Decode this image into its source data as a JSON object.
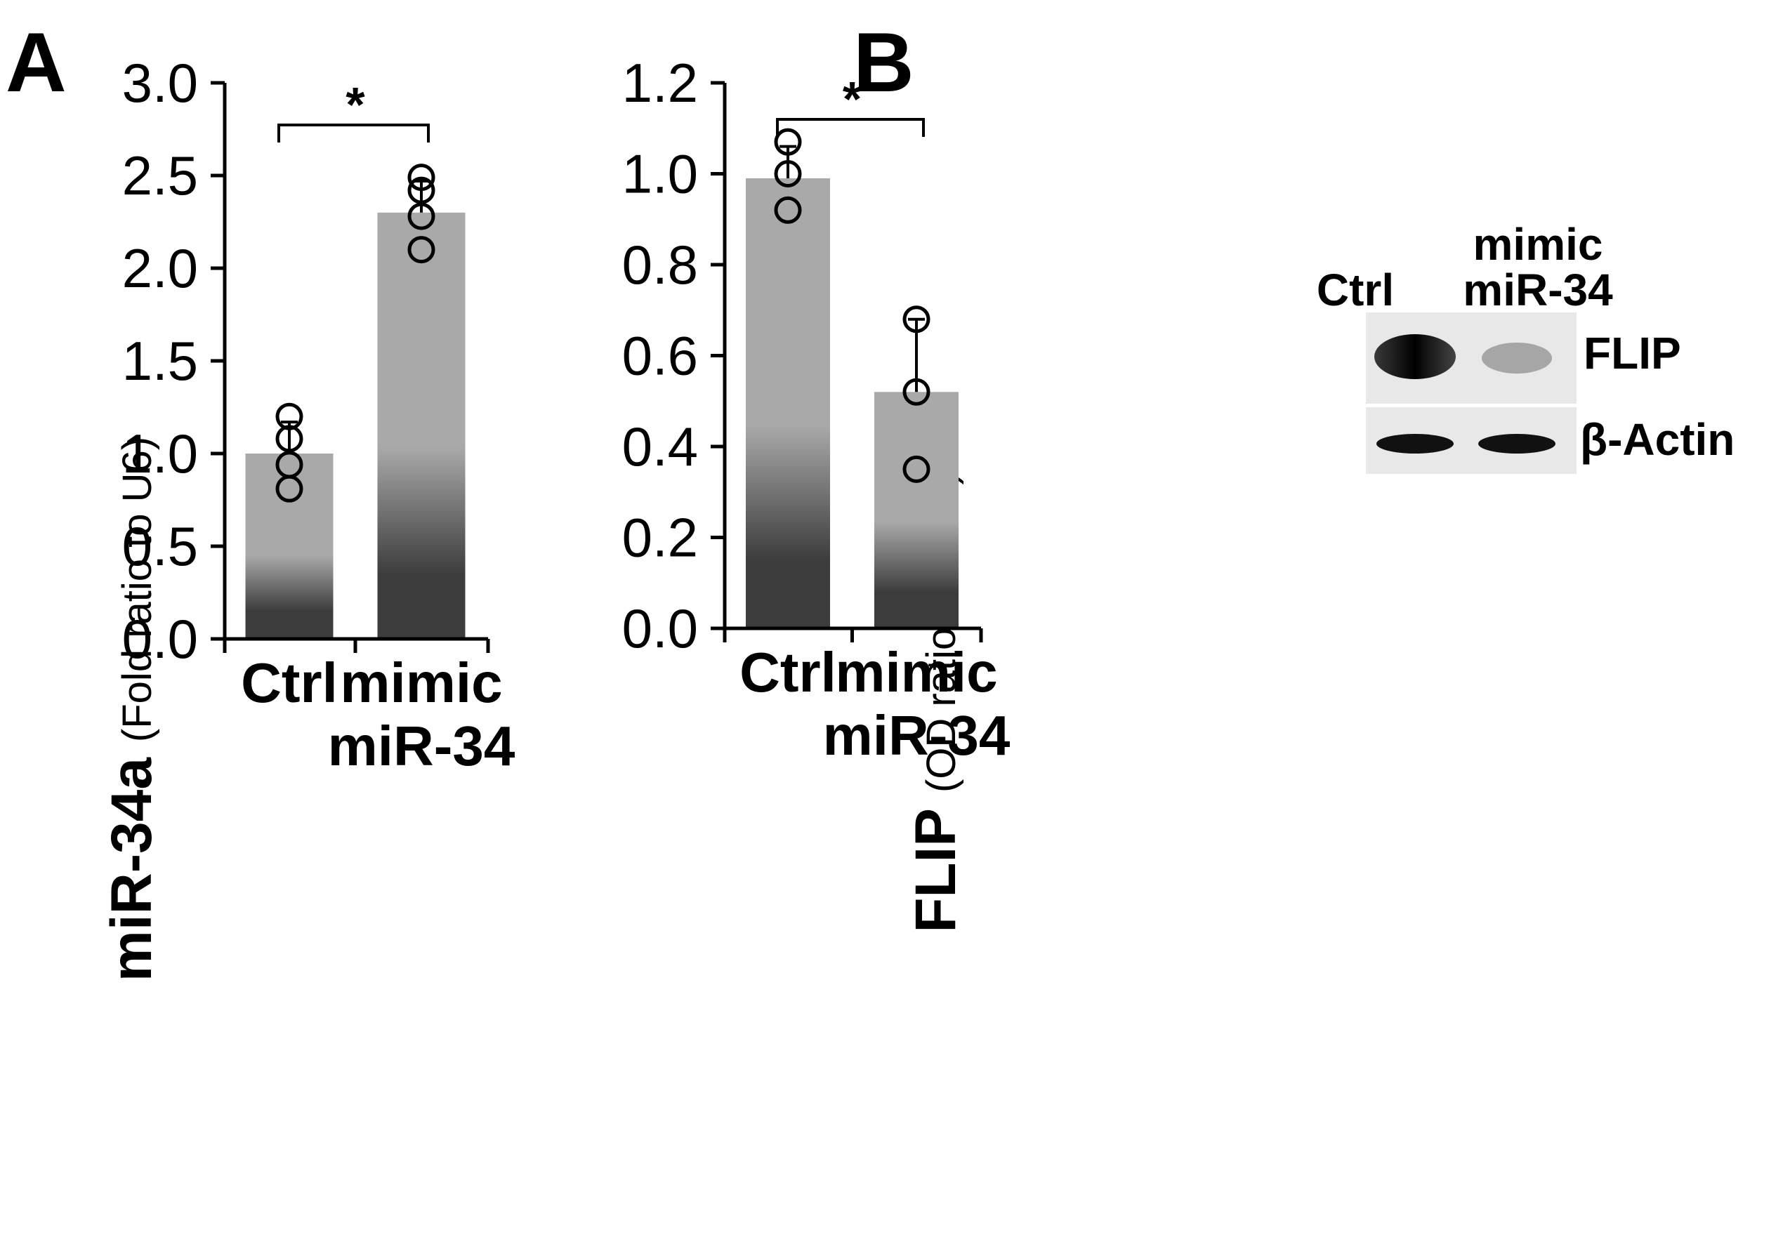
{
  "chart_data": [
    {
      "type": "bar",
      "panel": "A",
      "categories": [
        "Ctrl",
        "mimic miR-34"
      ],
      "category_lines": [
        [
          "Ctrl"
        ],
        [
          "mimic",
          "miR-34"
        ]
      ],
      "ylabel_main": "miR-34a",
      "ylabel_sub": "(Fold ratio to U6)",
      "ylim": [
        0,
        3.0
      ],
      "yticks": [
        "0.0",
        "0.5",
        "1.0",
        "1.5",
        "2.0",
        "2.5",
        "3.0"
      ],
      "ytick_values": [
        0,
        0.5,
        1.0,
        1.5,
        2.0,
        2.5,
        3.0
      ],
      "values": [
        1.0,
        2.3
      ],
      "error_upper": [
        1.17,
        2.47
      ],
      "points": [
        [
          1.2,
          1.08,
          0.94,
          0.81
        ],
        [
          2.49,
          2.42,
          2.28,
          2.1
        ]
      ],
      "significance": "*",
      "grid": false
    },
    {
      "type": "bar",
      "panel": "B",
      "categories": [
        "Ctrl",
        "mimic miR-34"
      ],
      "category_lines": [
        [
          "Ctrl"
        ],
        [
          "mimic",
          "miR-34"
        ]
      ],
      "ylabel_main": "FLIP",
      "ylabel_sub": "(OD ratio to actin)",
      "ylim": [
        0,
        1.2
      ],
      "yticks": [
        "0.0",
        "0.2",
        "0.4",
        "0.6",
        "0.8",
        "1.0",
        "1.2"
      ],
      "ytick_values": [
        0,
        0.2,
        0.4,
        0.6,
        0.8,
        1.0,
        1.2
      ],
      "values": [
        0.99,
        0.52
      ],
      "error_upper": [
        1.06,
        0.68
      ],
      "points": [
        [
          1.07,
          1.0,
          0.92
        ],
        [
          0.68,
          0.52,
          0.35
        ]
      ],
      "significance": "*",
      "grid": false,
      "inset_blot": {
        "lane_labels": [
          "Ctrl",
          "mimic\nmiR-34"
        ],
        "lane_label_lines": [
          [
            "Ctrl"
          ],
          [
            "mimic",
            "miR-34"
          ]
        ],
        "rows": [
          "FLIP",
          "β-Actin"
        ]
      }
    }
  ],
  "colors": {
    "bar_top": "#a8a8a8",
    "bar_bottom": "#3a3a3a",
    "axis": "#000000",
    "marker": "#000000",
    "blot_bg": "#e6e6e6",
    "blot_band": "#1a1a1a"
  }
}
